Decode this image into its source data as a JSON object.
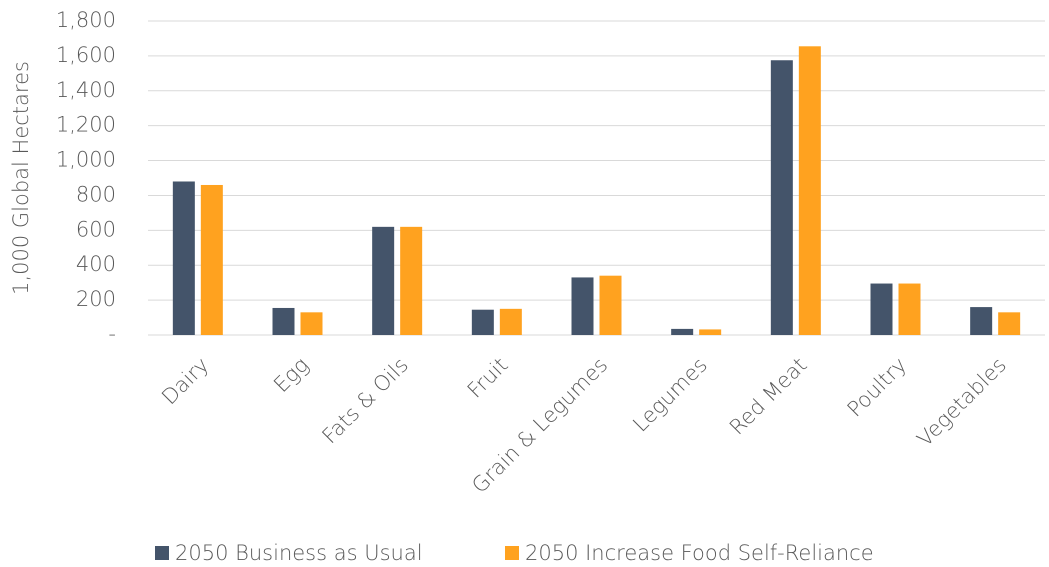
{
  "chart_data": {
    "type": "bar",
    "y_label": "1,000 Global Hectares",
    "categories": [
      "Dairy",
      "Egg",
      "Fats & Oils",
      "Fruit",
      "Grain & Legumes",
      "Legumes",
      "Red Meat",
      "Poultry",
      "Vegetables"
    ],
    "series": [
      {
        "name": "2050 Business as Usual",
        "color": "#44546a",
        "values": [
          880,
          155,
          620,
          145,
          330,
          35,
          1575,
          295,
          160
        ]
      },
      {
        "name": "2050 Increase Food Self-Reliance",
        "color": "#ffa21f",
        "values": [
          860,
          130,
          620,
          150,
          340,
          32,
          1655,
          295,
          130
        ]
      }
    ],
    "ylim": [
      0,
      1800
    ],
    "yticks": [
      {
        "value": 0,
        "label": "-"
      },
      200,
      400,
      600,
      800,
      {
        "value": 1000,
        "label": "1,000"
      },
      {
        "value": 1200,
        "label": "1,200"
      },
      {
        "value": 1400,
        "label": "1,400"
      },
      {
        "value": 1600,
        "label": "1,600"
      },
      {
        "value": 1800,
        "label": "1,800"
      }
    ],
    "grid": true,
    "legend": "bottom"
  }
}
